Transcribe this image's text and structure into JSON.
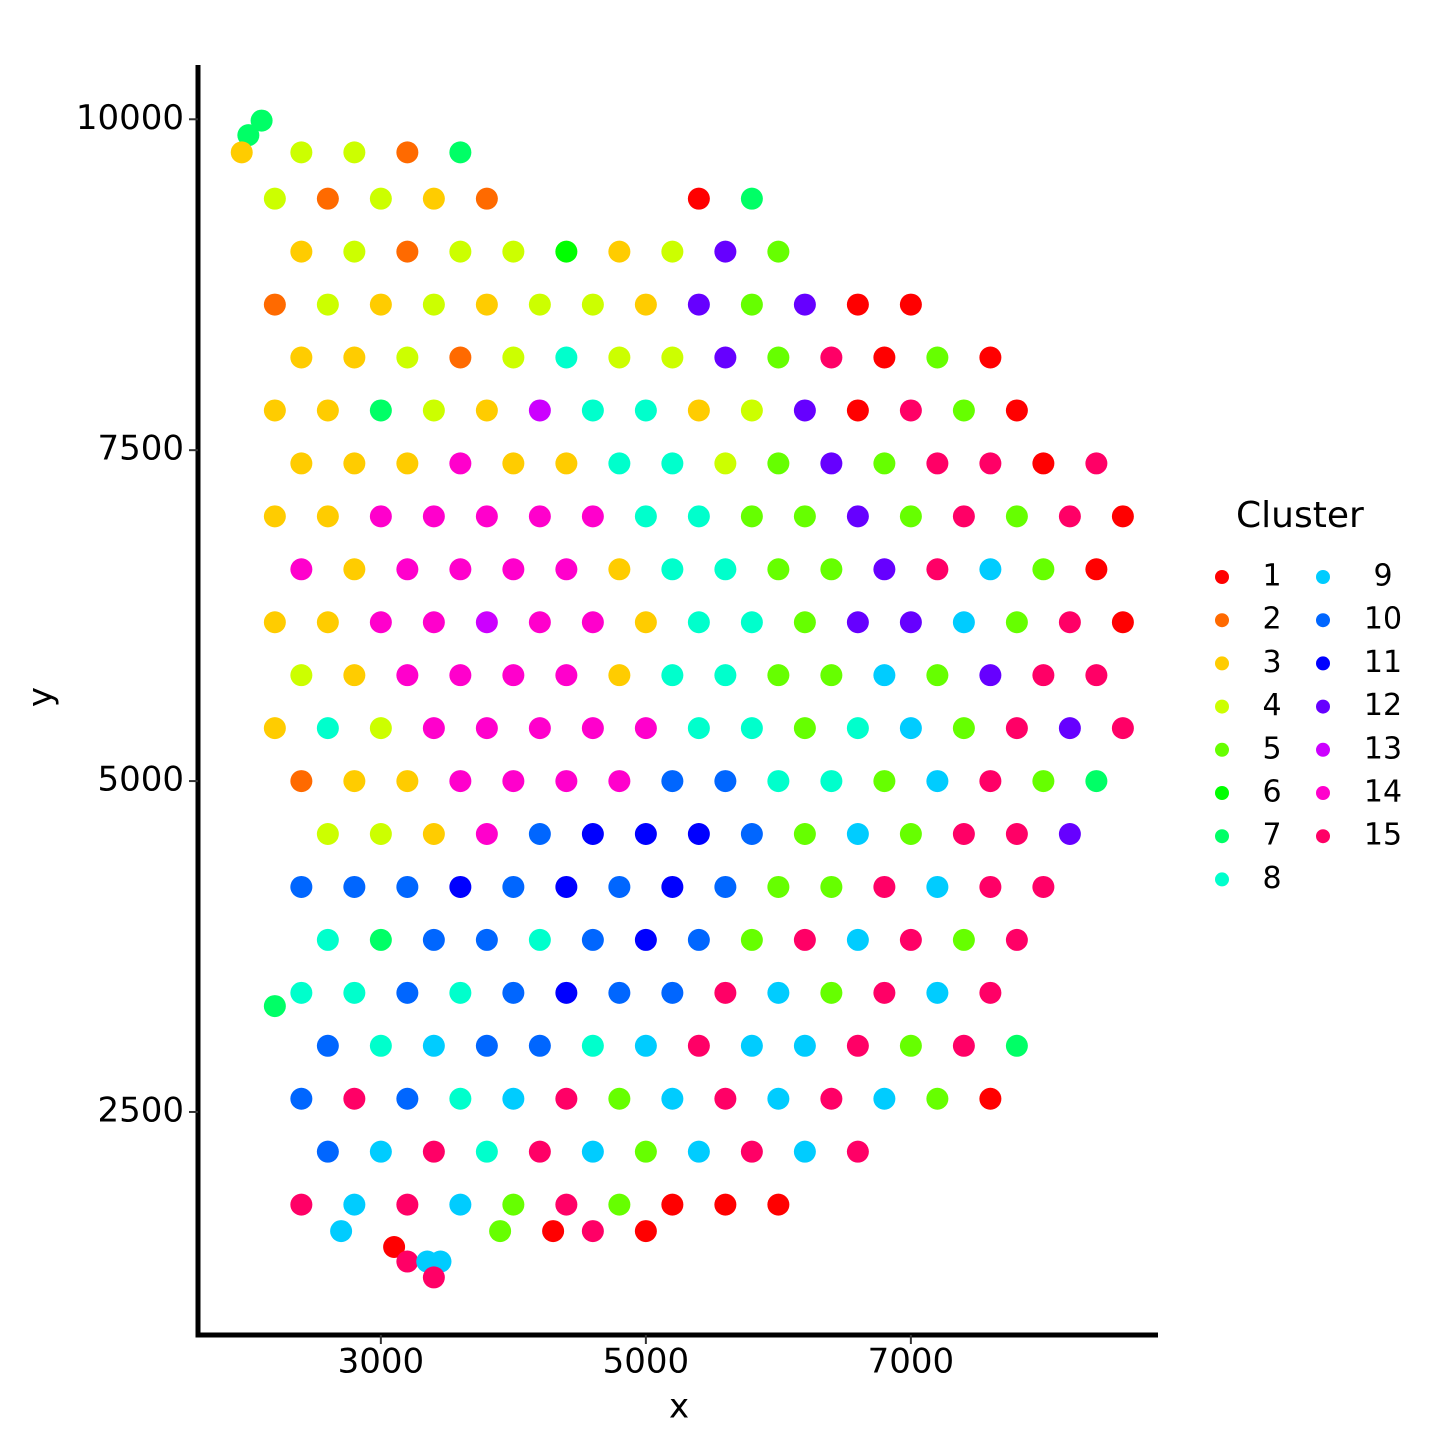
{
  "chart_data": {
    "type": "scatter",
    "xlabel": "x",
    "ylabel": "y",
    "legend_title": "Cluster",
    "xlim": [
      1620,
      8865
    ],
    "ylim": [
      815,
      10410
    ],
    "xticks": [
      3000,
      5000,
      7000
    ],
    "yticks": [
      2500,
      5000,
      7500,
      10000
    ],
    "clusters": [
      {
        "name": "1",
        "color": "#FF0000"
      },
      {
        "name": "2",
        "color": "#FF6A00"
      },
      {
        "name": "3",
        "color": "#FFCC00"
      },
      {
        "name": "4",
        "color": "#CCFF00"
      },
      {
        "name": "5",
        "color": "#66FF00"
      },
      {
        "name": "6",
        "color": "#00FF00"
      },
      {
        "name": "7",
        "color": "#00FF66"
      },
      {
        "name": "8",
        "color": "#00FFCC"
      },
      {
        "name": "9",
        "color": "#00CCFF"
      },
      {
        "name": "10",
        "color": "#0066FF"
      },
      {
        "name": "11",
        "color": "#0000FF"
      },
      {
        "name": "12",
        "color": "#6600FF"
      },
      {
        "name": "13",
        "color": "#CC00FF"
      },
      {
        "name": "14",
        "color": "#FF00CC"
      },
      {
        "name": "15",
        "color": "#FF0066"
      }
    ],
    "x": [
      2100,
      2000,
      1950,
      2400,
      2800,
      3200,
      3600,
      2200,
      2600,
      3000,
      3400,
      3800,
      5400,
      5800,
      2400,
      2800,
      3200,
      3600,
      4000,
      4400,
      4800,
      5200,
      5600,
      6000,
      2200,
      2600,
      3000,
      3400,
      3800,
      4200,
      4600,
      5000,
      5400,
      5800,
      6200,
      6600,
      7000,
      2400,
      2800,
      3200,
      3600,
      4000,
      4400,
      4800,
      5200,
      5600,
      6000,
      6400,
      6800,
      7200,
      7600,
      2200,
      2600,
      3000,
      3400,
      3800,
      4200,
      4600,
      5000,
      5400,
      5800,
      6200,
      6600,
      7000,
      7400,
      7800,
      2400,
      2800,
      3200,
      3600,
      4000,
      4400,
      4800,
      5200,
      5600,
      6000,
      6400,
      6800,
      7200,
      7600,
      8000,
      8400,
      2200,
      2600,
      3000,
      3400,
      3800,
      4200,
      4600,
      5000,
      5400,
      5800,
      6200,
      6600,
      7000,
      7400,
      7800,
      8200,
      8600,
      2400,
      2800,
      3200,
      3600,
      4000,
      4400,
      4800,
      5200,
      5600,
      6000,
      6400,
      6800,
      7200,
      7600,
      8000,
      8400,
      2200,
      2600,
      3000,
      3400,
      3800,
      4200,
      4600,
      5000,
      5400,
      5800,
      6200,
      6600,
      7000,
      7400,
      7800,
      8200,
      8600,
      2400,
      2800,
      3200,
      3600,
      4000,
      4400,
      4800,
      5200,
      5600,
      6000,
      6400,
      6800,
      7200,
      7600,
      8000,
      8400,
      2200,
      2600,
      3000,
      3400,
      3800,
      4200,
      4600,
      5000,
      5400,
      5800,
      6200,
      6600,
      7000,
      7400,
      7800,
      8200,
      8600,
      2400,
      2800,
      3200,
      3600,
      4000,
      4400,
      4800,
      5200,
      5600,
      6000,
      6400,
      6800,
      7200,
      7600,
      8000,
      8400,
      2600,
      3000,
      3400,
      3800,
      4200,
      4600,
      5000,
      5400,
      5800,
      6200,
      6600,
      7000,
      7400,
      7800,
      8200,
      2400,
      2800,
      3200,
      3600,
      4000,
      4400,
      4800,
      5200,
      5600,
      6000,
      6400,
      6800,
      7200,
      7600,
      8000,
      2600,
      3000,
      3400,
      3800,
      4200,
      4600,
      5000,
      5400,
      5800,
      6200,
      6600,
      7000,
      7400,
      7800,
      2400,
      2800,
      3200,
      3600,
      4000,
      4400,
      4800,
      5200,
      5600,
      6000,
      6400,
      6800,
      7200,
      7600,
      2200,
      2600,
      3000,
      3400,
      3800,
      4200,
      4600,
      5000,
      5400,
      5800,
      6200,
      6600,
      7000,
      7400,
      7800,
      2400,
      2800,
      3200,
      3600,
      4000,
      4400,
      4800,
      5200,
      5600,
      6000,
      6400,
      6800,
      7200,
      7600,
      2600,
      3000,
      3400,
      3800,
      4200,
      4600,
      5000,
      5400,
      5800,
      6200,
      6600,
      2400,
      2800,
      3200,
      3600,
      4000,
      4400,
      4800,
      5200,
      5600,
      6000,
      2700,
      3900,
      4300,
      4600,
      5000,
      3100,
      3200,
      3350,
      3450,
      3400
    ],
    "y": [
      9990,
      9880,
      9750,
      9750,
      9750,
      9750,
      9750,
      9400,
      9400,
      9400,
      9400,
      9400,
      9400,
      9400,
      9000,
      9000,
      9000,
      9000,
      9000,
      9000,
      9000,
      9000,
      9000,
      9000,
      8600,
      8600,
      8600,
      8600,
      8600,
      8600,
      8600,
      8600,
      8600,
      8600,
      8600,
      8600,
      8600,
      8200,
      8200,
      8200,
      8200,
      8200,
      8200,
      8200,
      8200,
      8200,
      8200,
      8200,
      8200,
      8200,
      8200,
      7800,
      7800,
      7800,
      7800,
      7800,
      7800,
      7800,
      7800,
      7800,
      7800,
      7800,
      7800,
      7800,
      7800,
      7800,
      7400,
      7400,
      7400,
      7400,
      7400,
      7400,
      7400,
      7400,
      7400,
      7400,
      7400,
      7400,
      7400,
      7400,
      7400,
      7400,
      7000,
      7000,
      7000,
      7000,
      7000,
      7000,
      7000,
      7000,
      7000,
      7000,
      7000,
      7000,
      7000,
      7000,
      7000,
      7000,
      7000,
      6600,
      6600,
      6600,
      6600,
      6600,
      6600,
      6600,
      6600,
      6600,
      6600,
      6600,
      6600,
      6600,
      6600,
      6600,
      6600,
      6200,
      6200,
      6200,
      6200,
      6200,
      6200,
      6200,
      6200,
      6200,
      6200,
      6200,
      6200,
      6200,
      6200,
      6200,
      6200,
      6200,
      5800,
      5800,
      5800,
      5800,
      5800,
      5800,
      5800,
      5800,
      5800,
      5800,
      5800,
      5800,
      5800,
      5800,
      5800,
      5800,
      5400,
      5400,
      5400,
      5400,
      5400,
      5400,
      5400,
      5400,
      5400,
      5400,
      5400,
      5400,
      5400,
      5400,
      5400,
      5400,
      5400,
      5000,
      5000,
      5000,
      5000,
      5000,
      5000,
      5000,
      5000,
      5000,
      5000,
      5000,
      5000,
      5000,
      5000,
      5000,
      5000,
      4600,
      4600,
      4600,
      4600,
      4600,
      4600,
      4600,
      4600,
      4600,
      4600,
      4600,
      4600,
      4600,
      4600,
      4600,
      4200,
      4200,
      4200,
      4200,
      4200,
      4200,
      4200,
      4200,
      4200,
      4200,
      4200,
      4200,
      4200,
      4200,
      4200,
      3800,
      3800,
      3800,
      3800,
      3800,
      3800,
      3800,
      3800,
      3800,
      3800,
      3800,
      3800,
      3800,
      3800,
      3400,
      3400,
      3400,
      3400,
      3400,
      3400,
      3400,
      3400,
      3400,
      3400,
      3400,
      3400,
      3400,
      3400,
      3300,
      3000,
      3000,
      3000,
      3000,
      3000,
      3000,
      3000,
      3000,
      3000,
      3000,
      3000,
      3000,
      3000,
      3000,
      2600,
      2600,
      2600,
      2600,
      2600,
      2600,
      2600,
      2600,
      2600,
      2600,
      2600,
      2600,
      2600,
      2600,
      2200,
      2200,
      2200,
      2200,
      2200,
      2200,
      2200,
      2200,
      2200,
      2200,
      2200,
      1800,
      1800,
      1800,
      1800,
      1800,
      1800,
      1800,
      1800,
      1800,
      1800,
      1600,
      1600,
      1600,
      1600,
      1600,
      1480,
      1370,
      1370,
      1370,
      1250
    ],
    "cluster": [
      7,
      7,
      3,
      4,
      4,
      2,
      7,
      4,
      2,
      4,
      3,
      2,
      1,
      7,
      3,
      4,
      2,
      4,
      4,
      6,
      3,
      4,
      12,
      5,
      2,
      4,
      3,
      4,
      3,
      4,
      4,
      3,
      12,
      5,
      12,
      1,
      1,
      3,
      3,
      4,
      2,
      4,
      8,
      4,
      4,
      12,
      5,
      15,
      1,
      5,
      1,
      3,
      3,
      7,
      4,
      3,
      13,
      8,
      8,
      3,
      4,
      12,
      1,
      15,
      5,
      1,
      3,
      3,
      3,
      14,
      3,
      3,
      8,
      8,
      4,
      5,
      12,
      5,
      15,
      15,
      1,
      15,
      3,
      3,
      14,
      14,
      14,
      14,
      14,
      8,
      8,
      5,
      5,
      12,
      5,
      15,
      5,
      15,
      1,
      14,
      3,
      14,
      14,
      14,
      14,
      3,
      8,
      8,
      5,
      5,
      12,
      15,
      9,
      5,
      1,
      3,
      3,
      14,
      14,
      13,
      14,
      14,
      3,
      8,
      8,
      5,
      12,
      12,
      9,
      5,
      15,
      1,
      4,
      3,
      14,
      14,
      14,
      14,
      3,
      8,
      8,
      5,
      5,
      9,
      5,
      12,
      15,
      15,
      3,
      8,
      4,
      14,
      14,
      14,
      14,
      14,
      8,
      8,
      5,
      8,
      9,
      5,
      15,
      12,
      15,
      2,
      3,
      3,
      14,
      14,
      14,
      14,
      10,
      10,
      8,
      8,
      5,
      9,
      15,
      5,
      7,
      4,
      4,
      3,
      14,
      10,
      11,
      11,
      11,
      10,
      5,
      9,
      5,
      15,
      15,
      12,
      10,
      10,
      10,
      11,
      10,
      11,
      10,
      11,
      10,
      5,
      5,
      15,
      9,
      15,
      15,
      8,
      7,
      10,
      10,
      8,
      10,
      11,
      10,
      5,
      15,
      9,
      15,
      5,
      15,
      8,
      8,
      10,
      8,
      10,
      11,
      10,
      10,
      15,
      9,
      5,
      15,
      9,
      15,
      7,
      10,
      8,
      9,
      10,
      10,
      8,
      9,
      15,
      9,
      9,
      15,
      5,
      15,
      7,
      10,
      15,
      10,
      8,
      9,
      15,
      5,
      9,
      15,
      9,
      15,
      9,
      5,
      1,
      10,
      9,
      15,
      8,
      15,
      9,
      5,
      9,
      15,
      9,
      15,
      15,
      9,
      15,
      9,
      5,
      15,
      5,
      1,
      1,
      1,
      9,
      5,
      1,
      15,
      1,
      1,
      15,
      9,
      9,
      15
    ]
  }
}
